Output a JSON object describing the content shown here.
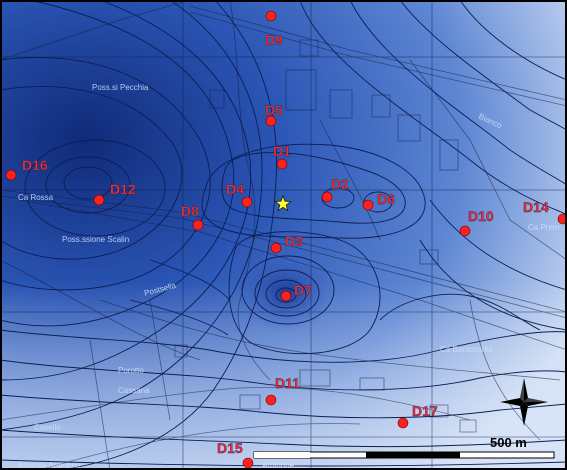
{
  "map": {
    "colors": {
      "deep": "#1c3a8f",
      "mid": "#3d66c6",
      "light": "#c8d8f2",
      "contour": "#0d1d55",
      "well_dot": "#ff2020",
      "well_label": "#ff2a2a",
      "star": "#ffff33",
      "road": "#1b2640"
    },
    "wells": [
      {
        "id": "D9",
        "label": "D9"
      },
      {
        "id": "D5",
        "label": "D5"
      },
      {
        "id": "D1",
        "label": "D1"
      },
      {
        "id": "D16",
        "label": "D16"
      },
      {
        "id": "D12",
        "label": "D12"
      },
      {
        "id": "D4",
        "label": "D4"
      },
      {
        "id": "D2",
        "label": "D2"
      },
      {
        "id": "D6",
        "label": "D6"
      },
      {
        "id": "D8",
        "label": "D8"
      },
      {
        "id": "D3",
        "label": "D3"
      },
      {
        "id": "D10",
        "label": "D10"
      },
      {
        "id": "D14",
        "label": "D14"
      },
      {
        "id": "D7",
        "label": "D7"
      },
      {
        "id": "D11",
        "label": "D11"
      },
      {
        "id": "D17",
        "label": "D17"
      },
      {
        "id": "D15",
        "label": "D15"
      }
    ],
    "place_labels": [
      "Poss.ssione Scalin",
      "Porotto",
      "Cassana",
      "Ca Bardocchia",
      "Ca Prem",
      "Ca Rossa",
      "Bianco",
      "Casello",
      "Poss.si Pecchia",
      "Boscolo Arginone",
      "Arginone",
      "Postsella"
    ],
    "scale_bar": {
      "label": "500 m"
    },
    "north_arrow_icon": "compass-rose-icon",
    "star_icon": "star-icon"
  }
}
